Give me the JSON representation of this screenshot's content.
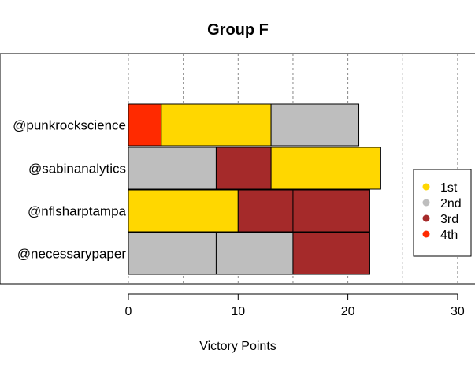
{
  "chart_data": {
    "type": "bar",
    "orientation": "horizontal",
    "stacked": true,
    "title": "Group F",
    "xlabel": "Victory Points",
    "ylabel": "",
    "xlim": [
      0,
      30
    ],
    "xticks": [
      0,
      10,
      20,
      30
    ],
    "gridlines_x": [
      0,
      5,
      10,
      15,
      20,
      25,
      30
    ],
    "grid": "dashed-vertical",
    "categories": [
      "@punkrockscience",
      "@sabinanalytics",
      "@nflsharptampa",
      "@necessarypaper"
    ],
    "segments": [
      [
        {
          "place": "4th",
          "value": 3
        },
        {
          "place": "1st",
          "value": 10
        },
        {
          "place": "2nd",
          "value": 8
        }
      ],
      [
        {
          "place": "2nd",
          "value": 8
        },
        {
          "place": "3rd",
          "value": 5
        },
        {
          "place": "1st",
          "value": 10
        }
      ],
      [
        {
          "place": "1st",
          "value": 10
        },
        {
          "place": "3rd",
          "value": 5
        },
        {
          "place": "3rd",
          "value": 7
        }
      ],
      [
        {
          "place": "2nd",
          "value": 8
        },
        {
          "place": "2nd",
          "value": 7
        },
        {
          "place": "3rd",
          "value": 7
        }
      ]
    ],
    "legend": {
      "position": "right",
      "entries": [
        {
          "label": "1st",
          "color": "#FFD700"
        },
        {
          "label": "2nd",
          "color": "#BEBEBE"
        },
        {
          "label": "3rd",
          "color": "#A52A2A"
        },
        {
          "label": "4th",
          "color": "#FF2A00"
        }
      ]
    }
  }
}
